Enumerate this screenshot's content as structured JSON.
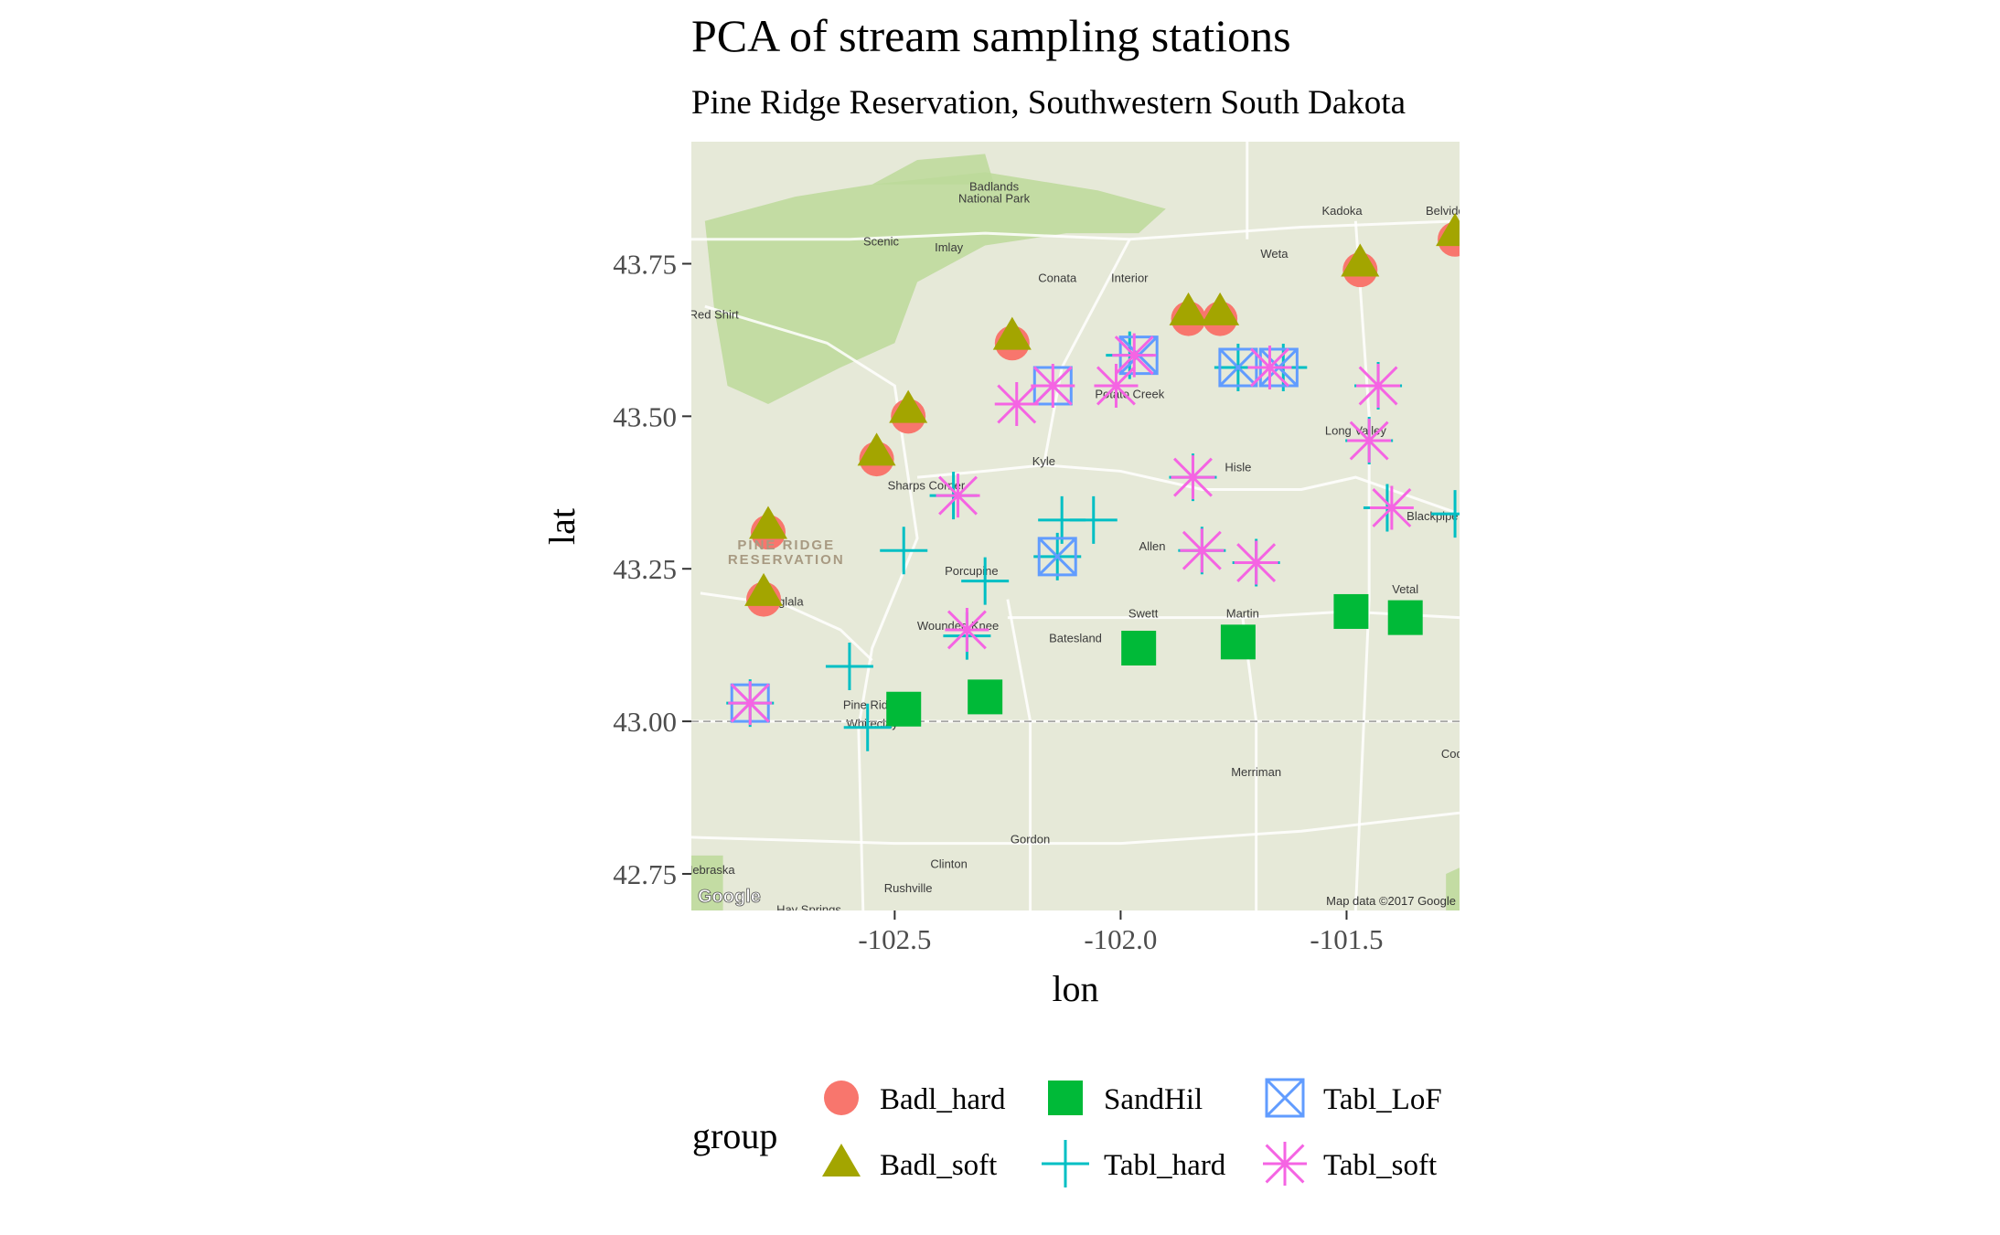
{
  "chart_data": {
    "type": "scatter",
    "title": "PCA of stream sampling stations",
    "subtitle": "Pine Ridge Reservation, Southwestern South Dakota",
    "xlabel": "lon",
    "ylabel": "lat",
    "xlim": [
      -102.95,
      -101.25
    ],
    "ylim": [
      42.69,
      43.95
    ],
    "x_ticks": [
      -102.5,
      -102.0,
      -101.5
    ],
    "x_tick_labels": [
      "-102.5",
      "-102.0",
      "-101.5"
    ],
    "y_ticks": [
      42.75,
      43.0,
      43.25,
      43.5,
      43.75
    ],
    "y_tick_labels": [
      "42.75",
      "43.00",
      "43.25",
      "43.50",
      "43.75"
    ],
    "background": "map",
    "legend": {
      "title": "group",
      "position": "bottom",
      "entries": [
        {
          "name": "Badl_hard",
          "shape": "circle",
          "color": "#F8766D"
        },
        {
          "name": "Badl_soft",
          "shape": "triangle",
          "color": "#A3A500"
        },
        {
          "name": "SandHil",
          "shape": "square",
          "color": "#00BA38"
        },
        {
          "name": "Tabl_hard",
          "shape": "plus",
          "color": "#00BFC4"
        },
        {
          "name": "Tabl_LoF",
          "shape": "boxx",
          "color": "#619CFF"
        },
        {
          "name": "Tabl_soft",
          "shape": "asterisk",
          "color": "#F564E3"
        }
      ]
    },
    "series": [
      {
        "name": "Badl_hard",
        "points": [
          [
            -102.78,
            43.31
          ],
          [
            -102.79,
            43.2
          ],
          [
            -102.47,
            43.5
          ],
          [
            -102.54,
            43.43
          ],
          [
            -102.24,
            43.62
          ],
          [
            -101.85,
            43.66
          ],
          [
            -101.78,
            43.66
          ],
          [
            -101.47,
            43.74
          ],
          [
            -101.26,
            43.79
          ]
        ]
      },
      {
        "name": "Badl_soft",
        "points": [
          [
            -102.78,
            43.32
          ],
          [
            -102.79,
            43.21
          ],
          [
            -102.47,
            43.51
          ],
          [
            -102.54,
            43.44
          ],
          [
            -102.24,
            43.63
          ],
          [
            -101.85,
            43.67
          ],
          [
            -101.78,
            43.67
          ],
          [
            -101.47,
            43.75
          ],
          [
            -101.26,
            43.8
          ]
        ]
      },
      {
        "name": "SandHil",
        "points": [
          [
            -102.48,
            43.02
          ],
          [
            -102.3,
            43.04
          ],
          [
            -101.96,
            43.12
          ],
          [
            -101.74,
            43.13
          ],
          [
            -101.49,
            43.18
          ],
          [
            -101.37,
            43.17
          ]
        ]
      },
      {
        "name": "Tabl_hard",
        "points": [
          [
            -102.82,
            43.03
          ],
          [
            -102.6,
            43.09
          ],
          [
            -102.56,
            42.99
          ],
          [
            -102.48,
            43.28
          ],
          [
            -102.37,
            43.37
          ],
          [
            -102.3,
            43.23
          ],
          [
            -102.34,
            43.14
          ],
          [
            -102.13,
            43.33
          ],
          [
            -102.06,
            43.33
          ],
          [
            -102.14,
            43.27
          ],
          [
            -101.98,
            43.6
          ],
          [
            -101.84,
            43.4
          ],
          [
            -101.82,
            43.28
          ],
          [
            -101.7,
            43.26
          ],
          [
            -101.74,
            43.58
          ],
          [
            -101.64,
            43.58
          ],
          [
            -101.43,
            43.55
          ],
          [
            -101.45,
            43.46
          ],
          [
            -101.41,
            43.35
          ],
          [
            -101.26,
            43.34
          ]
        ]
      },
      {
        "name": "Tabl_LoF",
        "points": [
          [
            -102.82,
            43.03
          ],
          [
            -102.15,
            43.55
          ],
          [
            -102.14,
            43.27
          ],
          [
            -101.96,
            43.6
          ],
          [
            -101.74,
            43.58
          ],
          [
            -101.65,
            43.58
          ]
        ]
      },
      {
        "name": "Tabl_soft",
        "points": [
          [
            -102.82,
            43.03
          ],
          [
            -102.36,
            43.37
          ],
          [
            -102.34,
            43.15
          ],
          [
            -102.23,
            43.52
          ],
          [
            -102.15,
            43.55
          ],
          [
            -102.01,
            43.55
          ],
          [
            -101.97,
            43.6
          ],
          [
            -101.84,
            43.4
          ],
          [
            -101.82,
            43.28
          ],
          [
            -101.7,
            43.26
          ],
          [
            -101.67,
            43.58
          ],
          [
            -101.45,
            43.46
          ],
          [
            -101.43,
            43.55
          ],
          [
            -101.4,
            43.35
          ]
        ]
      }
    ]
  },
  "map": {
    "places": [
      {
        "name": "Badlands",
        "lon": -102.28,
        "lat": 43.87
      },
      {
        "name": "National Park",
        "lon": -102.28,
        "lat": 43.85
      },
      {
        "name": "Scenic",
        "lon": -102.53,
        "lat": 43.78
      },
      {
        "name": "Imlay",
        "lon": -102.38,
        "lat": 43.77
      },
      {
        "name": "Conata",
        "lon": -102.14,
        "lat": 43.72
      },
      {
        "name": "Interior",
        "lon": -101.98,
        "lat": 43.72
      },
      {
        "name": "Kadoka",
        "lon": -101.51,
        "lat": 43.83
      },
      {
        "name": "Belvidere",
        "lon": -101.27,
        "lat": 43.83
      },
      {
        "name": "Weta",
        "lon": -101.66,
        "lat": 43.76
      },
      {
        "name": "Red Shirt",
        "lon": -102.9,
        "lat": 43.66
      },
      {
        "name": "Potato Creek",
        "lon": -101.98,
        "lat": 43.53
      },
      {
        "name": "Kyle",
        "lon": -102.17,
        "lat": 43.42
      },
      {
        "name": "Long Valley",
        "lon": -101.48,
        "lat": 43.47
      },
      {
        "name": "Hisle",
        "lon": -101.74,
        "lat": 43.41
      },
      {
        "name": "Sharps Corner",
        "lon": -102.43,
        "lat": 43.38
      },
      {
        "name": "Allen",
        "lon": -101.93,
        "lat": 43.28
      },
      {
        "name": "Blackpipe",
        "lon": -101.31,
        "lat": 43.33
      },
      {
        "name": "Porcupine",
        "lon": -102.33,
        "lat": 43.24
      },
      {
        "name": "Swett",
        "lon": -101.95,
        "lat": 43.17
      },
      {
        "name": "Martin",
        "lon": -101.73,
        "lat": 43.17
      },
      {
        "name": "Vetal",
        "lon": -101.37,
        "lat": 43.21
      },
      {
        "name": "Batesland",
        "lon": -102.1,
        "lat": 43.13
      },
      {
        "name": "Pine Ridge",
        "lon": -102.55,
        "lat": 43.02
      },
      {
        "name": "Whiteclay",
        "lon": -102.55,
        "lat": 42.99
      },
      {
        "name": "Oglala",
        "lon": -102.74,
        "lat": 43.19
      },
      {
        "name": "Wounded Knee",
        "lon": -102.36,
        "lat": 43.15
      },
      {
        "name": "Merriman",
        "lon": -101.7,
        "lat": 42.91
      },
      {
        "name": "Gordon",
        "lon": -102.2,
        "lat": 42.8
      },
      {
        "name": "Clinton",
        "lon": -102.38,
        "lat": 42.76
      },
      {
        "name": "Rushville",
        "lon": -102.47,
        "lat": 42.72
      },
      {
        "name": "Hay Springs",
        "lon": -102.69,
        "lat": 42.685
      },
      {
        "name": "Cody",
        "lon": -101.26,
        "lat": 42.94
      },
      {
        "name": "Nebraska",
        "lon": -102.91,
        "lat": 42.75
      }
    ],
    "reservation_label_1": "PINE RIDGE",
    "reservation_label_2": "RESERVATION",
    "attribution": "Map data ©2017 Google",
    "logo": "Google"
  }
}
